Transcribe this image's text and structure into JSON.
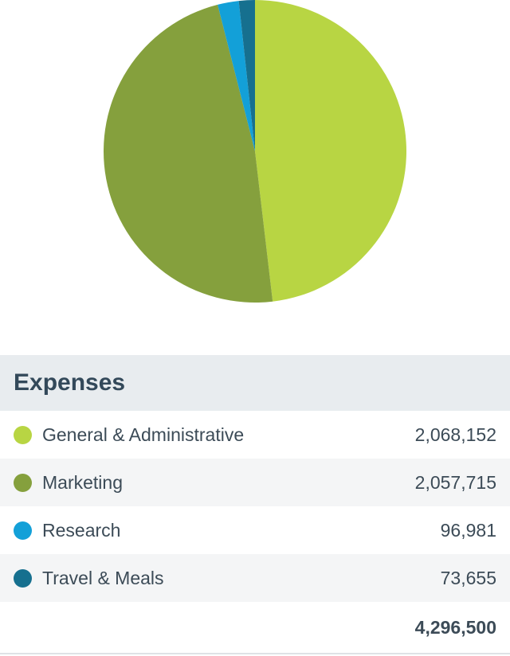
{
  "chart_data": {
    "type": "pie",
    "categories": [
      "General & Administrative",
      "Marketing",
      "Research",
      "Travel & Meals"
    ],
    "values": [
      2068152,
      2057715,
      96981,
      73655
    ],
    "colors": [
      "#b8d543",
      "#85a03d",
      "#13a0d8",
      "#16708f"
    ],
    "title": "",
    "legend_position": "bottom"
  },
  "table": {
    "title": "Expenses",
    "rows": [
      {
        "label": "General & Administrative",
        "value": "2,068,152",
        "color": "#b8d543"
      },
      {
        "label": "Marketing",
        "value": "2,057,715",
        "color": "#85a03d"
      },
      {
        "label": "Research",
        "value": "96,981",
        "color": "#13a0d8"
      },
      {
        "label": "Travel & Meals",
        "value": "73,655",
        "color": "#16708f"
      }
    ],
    "total": "4,296,500"
  }
}
